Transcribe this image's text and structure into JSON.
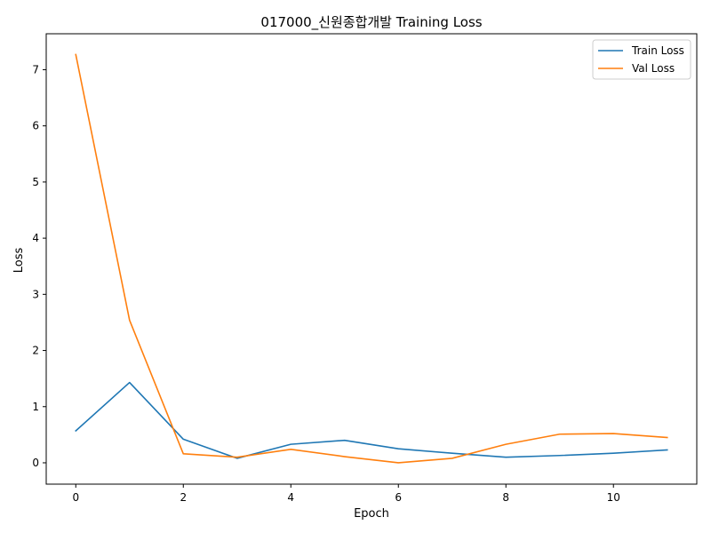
{
  "chart_data": {
    "type": "line",
    "title": "017000_신원종합개발 Training Loss",
    "xlabel": "Epoch",
    "ylabel": "Loss",
    "xlim": [
      -0.55,
      11.55
    ],
    "ylim": [
      -0.38,
      7.64
    ],
    "xticks": [
      0,
      2,
      4,
      6,
      8,
      10
    ],
    "yticks": [
      0,
      1,
      2,
      3,
      4,
      5,
      6,
      7
    ],
    "grid": false,
    "legend_position": "top-right",
    "x": [
      0,
      1,
      2,
      3,
      4,
      5,
      6,
      7,
      8,
      9,
      10,
      11
    ],
    "series": [
      {
        "name": "Train Loss",
        "color": "#1f77b4",
        "values": [
          0.57,
          1.43,
          0.42,
          0.08,
          0.33,
          0.4,
          0.25,
          0.17,
          0.1,
          0.13,
          0.17,
          0.23
        ]
      },
      {
        "name": "Val Loss",
        "color": "#ff7f0e",
        "values": [
          7.27,
          2.54,
          0.16,
          0.1,
          0.24,
          0.11,
          0.0,
          0.08,
          0.33,
          0.51,
          0.52,
          0.45
        ]
      }
    ]
  }
}
